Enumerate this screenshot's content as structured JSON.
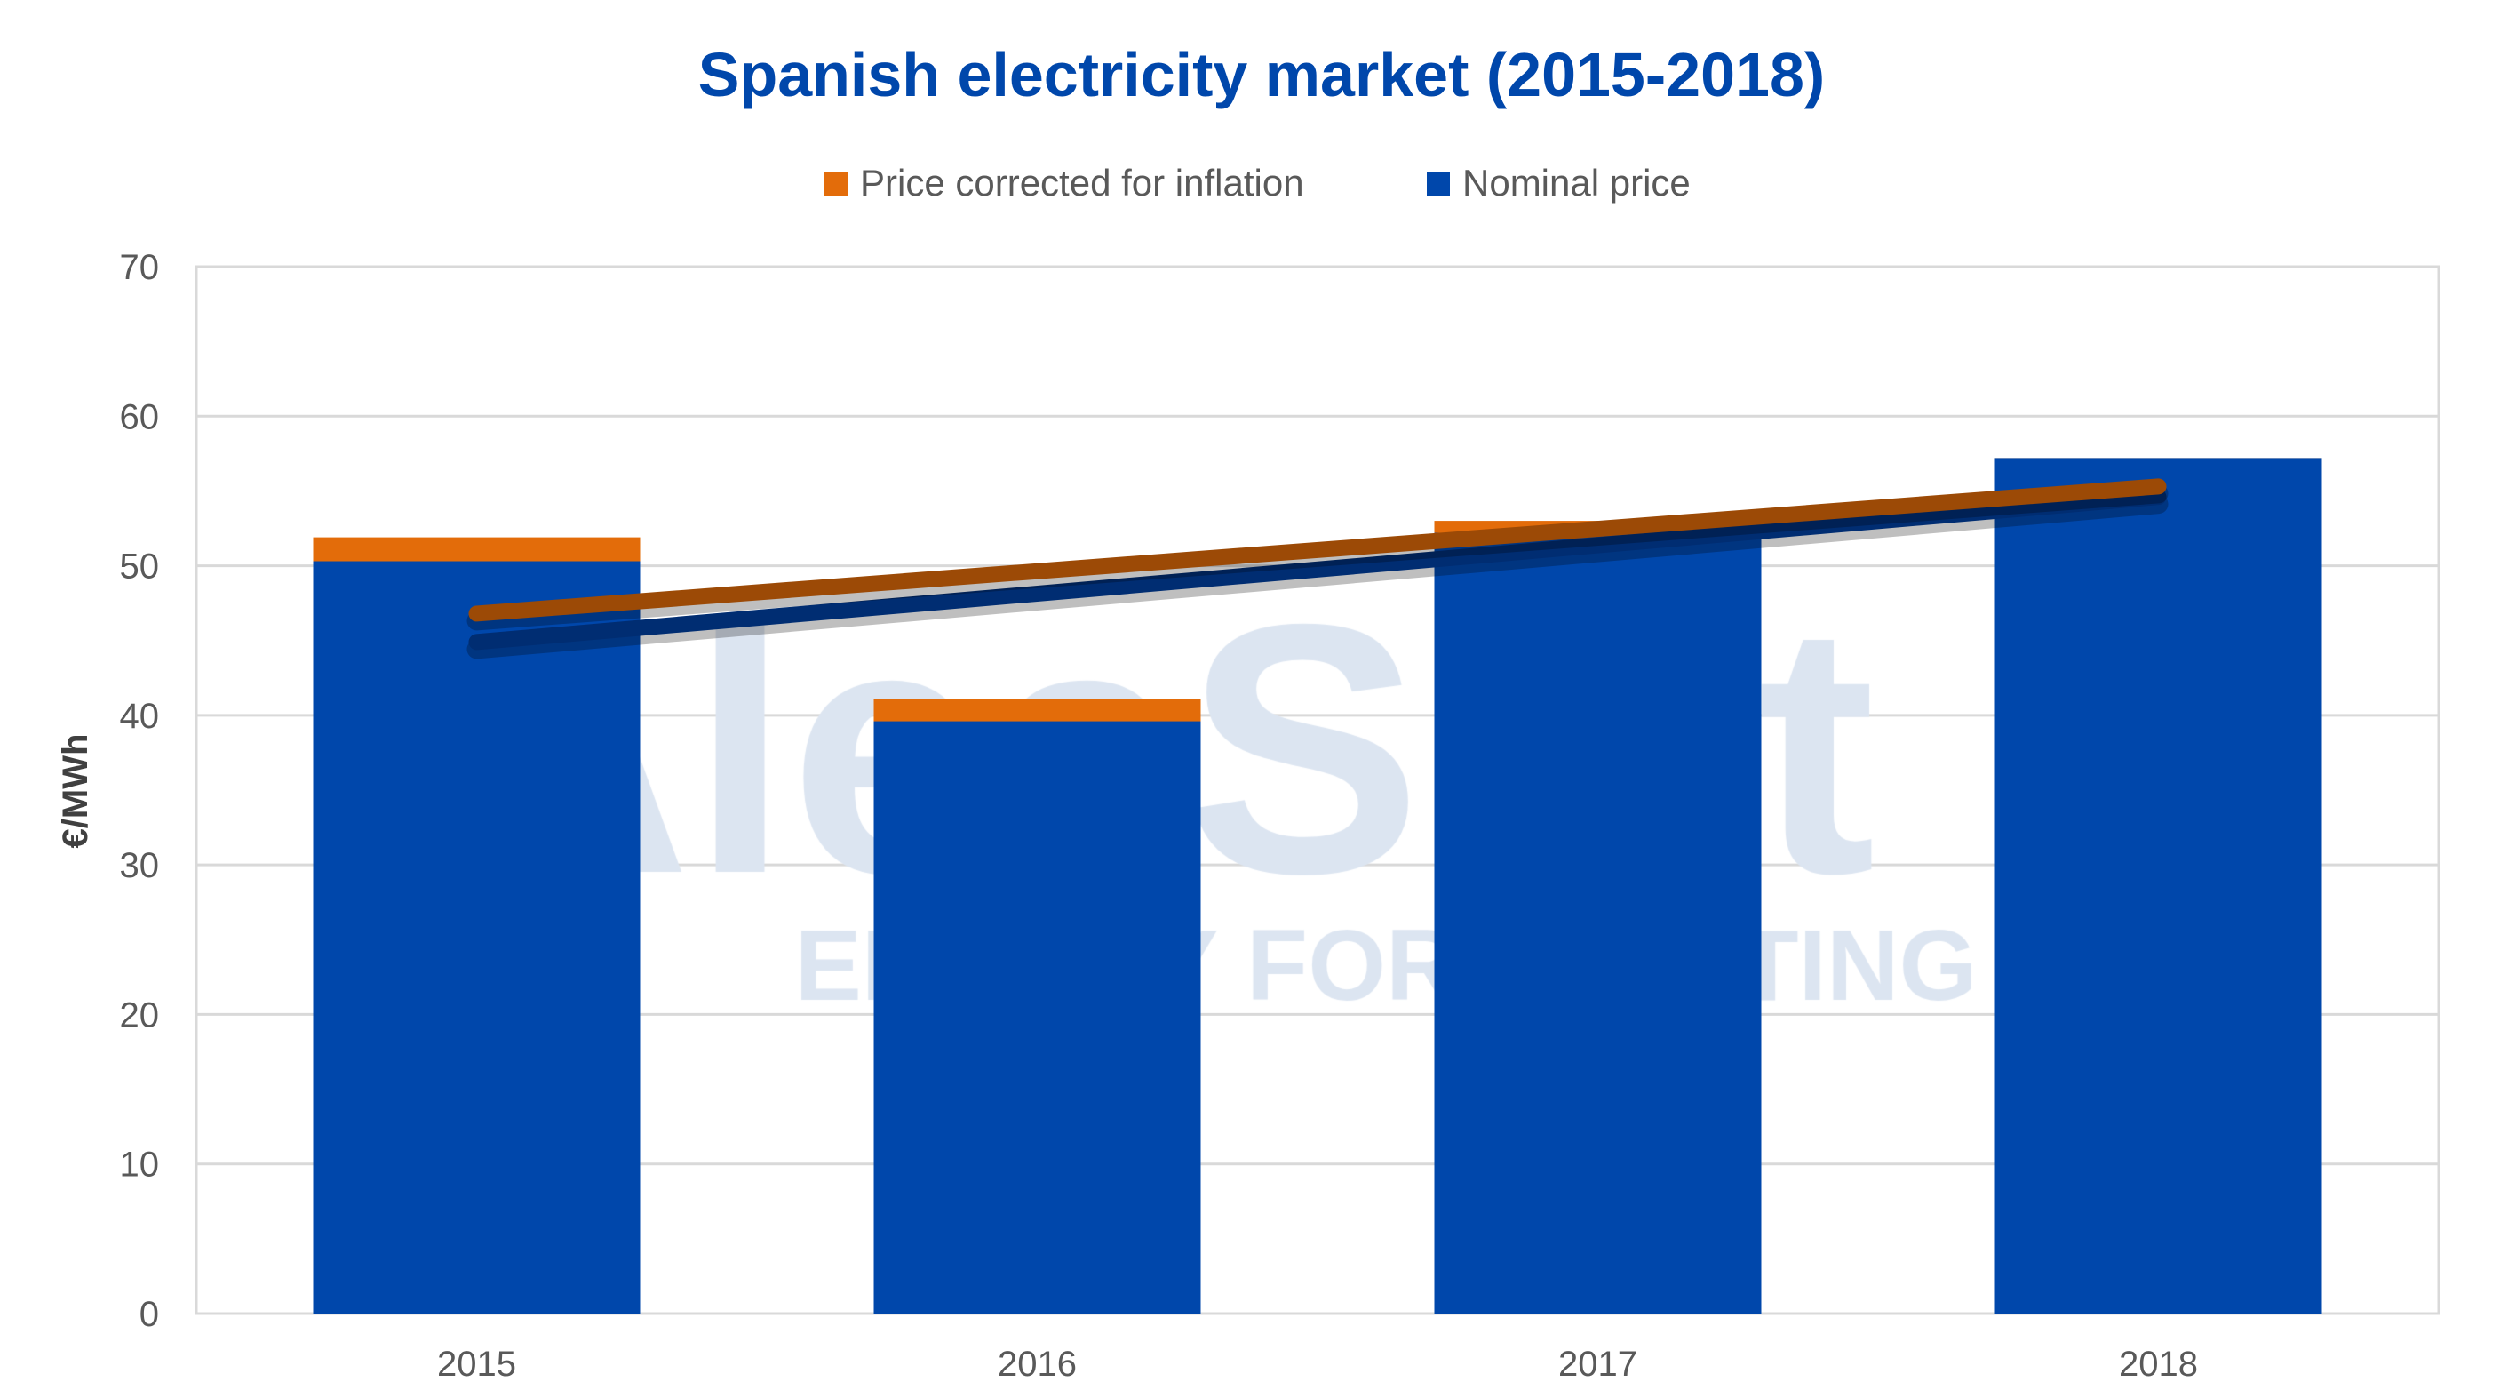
{
  "chart_data": {
    "type": "bar",
    "stacked_overlay": true,
    "title": "Spanish electricity market (2015-2018)",
    "xlabel": "",
    "ylabel": "€/MWh",
    "ylim": [
      0,
      70
    ],
    "yticks": [
      0,
      10,
      20,
      30,
      40,
      50,
      60,
      70
    ],
    "grid": true,
    "legend_position": "top",
    "categories": [
      "2015",
      "2016",
      "2017",
      "2018"
    ],
    "series": [
      {
        "name": "Price corrected for inflation",
        "color": "#E36C0A",
        "values": [
          51.9,
          41.1,
          53.0,
          57.2
        ]
      },
      {
        "name": "Nominal price",
        "color": "#0047AB",
        "values": [
          50.3,
          39.6,
          52.2,
          57.2
        ]
      }
    ],
    "trendlines": [
      {
        "series": "Price corrected for inflation",
        "type": "linear",
        "color": "#9C4A06",
        "start": 46.8,
        "end": 55.3
      },
      {
        "series": "Nominal price",
        "type": "linear",
        "color": "#002D72",
        "start": 44.9,
        "end": 54.6
      }
    ],
    "watermark": "AleaSoft ENERGY FORECASTING",
    "title_color": "#0047AB"
  }
}
